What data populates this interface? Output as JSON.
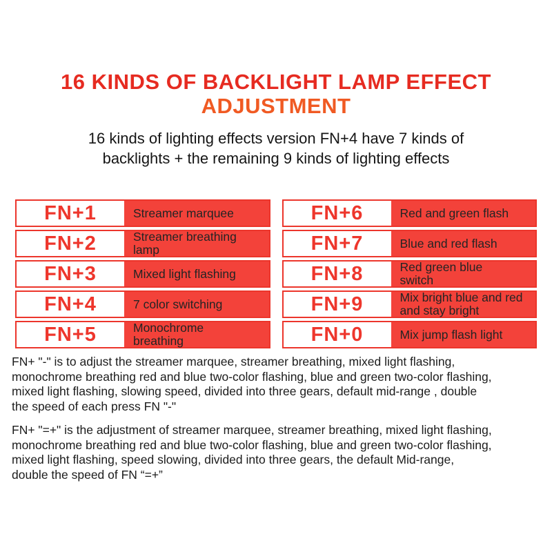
{
  "colors": {
    "title_red": "#e62b21",
    "title_orange": "#f05a23",
    "table_red": "#f3423a",
    "table_border": "#ec352b",
    "fn_text": "#ee362c",
    "text_dark": "#1f1f1f"
  },
  "header": {
    "title_line1": "16 KINDS OF BACKLIGHT LAMP EFFECT",
    "title_line2": "ADJUSTMENT",
    "subtitle": "16 kinds of lighting effects version FN+4 have 7 kinds of\nbacklights + the remaining 9 kinds of lighting effects"
  },
  "tables": {
    "left": [
      {
        "key": "FN+1",
        "effect": "Streamer marquee"
      },
      {
        "key": "FN+2",
        "effect": "Streamer breathing\nlamp"
      },
      {
        "key": "FN+3",
        "effect": "Mixed light flashing"
      },
      {
        "key": "FN+4",
        "effect": "7 color switching"
      },
      {
        "key": "FN+5",
        "effect": "Monochrome\nbreathing"
      }
    ],
    "right": [
      {
        "key": "FN+6",
        "effect": "Red and green flash"
      },
      {
        "key": "FN+7",
        "effect": "Blue and red flash"
      },
      {
        "key": "FN+8",
        "effect": "Red green blue\nswitch"
      },
      {
        "key": "FN+9",
        "effect": "Mix bright blue and red\nand stay bright"
      },
      {
        "key": "FN+0",
        "effect": "Mix jump flash light"
      }
    ]
  },
  "paragraphs": {
    "fn_minus": "FN+ \"-\" is to adjust the streamer marquee, streamer breathing, mixed light flashing,\nmonochrome breathing red and blue two-color flashing, blue and green two-color flashing,\nmixed light flashing, slowing speed, divided into three gears, default mid-range , double\nthe speed of each press FN \"-\"",
    "fn_plus": "FN+ \"=+\" is the adjustment of streamer marquee, streamer breathing, mixed light flashing,\nmonochrome breathing red and blue two-color flashing, blue and green two-color flashing,\nmixed light flashing, speed slowing, divided into three gears, the default Mid-range,\ndouble the speed of FN “=+”"
  }
}
